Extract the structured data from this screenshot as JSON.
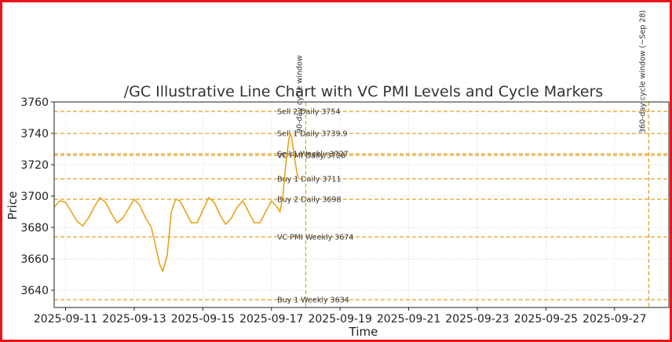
{
  "chart_data": {
    "type": "line",
    "title": "/GC Illustrative Line Chart with VC PMI Levels and Cycle Markers",
    "xlabel": "Time",
    "ylabel": "Price",
    "xlim": [
      "2025-09-10T16:00",
      "2025-09-28T14:00"
    ],
    "ylim": [
      3629,
      3760
    ],
    "y_ticks": [
      3640,
      3660,
      3680,
      3700,
      3720,
      3740,
      3760
    ],
    "x_ticks": [
      "2025-09-11",
      "2025-09-13",
      "2025-09-15",
      "2025-09-17",
      "2025-09-19",
      "2025-09-21",
      "2025-09-23",
      "2025-09-25",
      "2025-09-27"
    ],
    "grid": true,
    "line_color": "#e8a317",
    "level_color": "#e0a020",
    "series": [
      {
        "points": [
          [
            "2025-09-10T16:00",
            3693
          ],
          [
            "2025-09-10T20:00",
            3697
          ],
          [
            "2025-09-11T00:00",
            3696
          ],
          [
            "2025-09-11T04:00",
            3690
          ],
          [
            "2025-09-11T08:00",
            3684
          ],
          [
            "2025-09-11T12:00",
            3681
          ],
          [
            "2025-09-11T16:00",
            3686
          ],
          [
            "2025-09-11T20:00",
            3693
          ],
          [
            "2025-09-12T00:00",
            3699
          ],
          [
            "2025-09-12T04:00",
            3696
          ],
          [
            "2025-09-12T08:00",
            3689
          ],
          [
            "2025-09-12T12:00",
            3683
          ],
          [
            "2025-09-12T16:00",
            3686
          ],
          [
            "2025-09-12T20:00",
            3692
          ],
          [
            "2025-09-13T00:00",
            3698
          ],
          [
            "2025-09-13T04:00",
            3694
          ],
          [
            "2025-09-13T08:00",
            3686
          ],
          [
            "2025-09-13T12:00",
            3680
          ],
          [
            "2025-09-13T15:00",
            3668
          ],
          [
            "2025-09-13T18:00",
            3656
          ],
          [
            "2025-09-13T20:00",
            3652
          ],
          [
            "2025-09-13T23:00",
            3662
          ],
          [
            "2025-09-14T02:00",
            3690
          ],
          [
            "2025-09-14T05:00",
            3698
          ],
          [
            "2025-09-14T08:00",
            3697
          ],
          [
            "2025-09-14T12:00",
            3690
          ],
          [
            "2025-09-14T16:00",
            3683
          ],
          [
            "2025-09-14T20:00",
            3683
          ],
          [
            "2025-09-15T00:00",
            3691
          ],
          [
            "2025-09-15T04:00",
            3699
          ],
          [
            "2025-09-15T08:00",
            3696
          ],
          [
            "2025-09-15T12:00",
            3688
          ],
          [
            "2025-09-15T16:00",
            3682
          ],
          [
            "2025-09-15T20:00",
            3686
          ],
          [
            "2025-09-16T00:00",
            3693
          ],
          [
            "2025-09-16T04:00",
            3697
          ],
          [
            "2025-09-16T08:00",
            3690
          ],
          [
            "2025-09-16T12:00",
            3683
          ],
          [
            "2025-09-16T16:00",
            3683
          ],
          [
            "2025-09-16T20:00",
            3690
          ],
          [
            "2025-09-17T00:00",
            3697
          ],
          [
            "2025-09-17T04:00",
            3693
          ],
          [
            "2025-09-17T06:00",
            3690
          ],
          [
            "2025-09-17T08:00",
            3700
          ],
          [
            "2025-09-17T10:00",
            3720
          ],
          [
            "2025-09-17T12:00",
            3735
          ],
          [
            "2025-09-17T13:00",
            3740
          ],
          [
            "2025-09-17T14:00",
            3738
          ],
          [
            "2025-09-17T16:00",
            3725
          ],
          [
            "2025-09-17T18:00",
            3714
          ],
          [
            "2025-09-17T19:00",
            3711
          ]
        ]
      }
    ],
    "levels": [
      {
        "label": "Sell 2 Daily 3754",
        "value": 3754
      },
      {
        "label": "Sell 1 Daily 3739.9",
        "value": 3739.9
      },
      {
        "label": "Sell 1 Weekly 3727",
        "value": 3727
      },
      {
        "label": "VC PMI Daily 3726",
        "value": 3726
      },
      {
        "label": "Buy 1 Daily 3711",
        "value": 3711
      },
      {
        "label": "Buy 2 Daily 3698",
        "value": 3698
      },
      {
        "label": "VC PMI Weekly 3674",
        "value": 3674
      },
      {
        "label": "Buy 1 Weekly 3634",
        "value": 3634
      }
    ],
    "cycle_markers": [
      {
        "label": "90-day cycle window",
        "x": "2025-09-18T00:00"
      },
      {
        "label": "360-day cycle window (~Sep 28)",
        "x": "2025-09-28T00:00"
      }
    ]
  }
}
